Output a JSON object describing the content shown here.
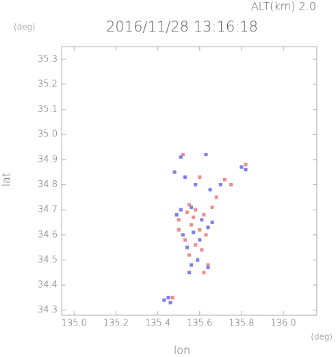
{
  "chart_data": {
    "type": "scatter",
    "title": "2016/11/28 13:16:18",
    "subtitle": "ALT(km) 2.0",
    "y_unit": "(deg)",
    "x_unit": "(deg)",
    "x_label": "lon",
    "y_label": "lat",
    "xlim": [
      134.94,
      136.16
    ],
    "ylim": [
      34.28,
      35.35
    ],
    "xticks": [
      {
        "value": 135,
        "label": "135.0"
      },
      135.2,
      135.4,
      135.6,
      135.8,
      {
        "value": 136,
        "label": "136.0"
      }
    ],
    "yticks": [
      34.3,
      34.4,
      34.5,
      34.6,
      34.7,
      34.8,
      34.9,
      {
        "value": 35,
        "label": "35.0"
      },
      35.1,
      35.2,
      35.3
    ],
    "series": [
      {
        "color": "#f08a8a",
        "x": [
          135.52,
          135.6,
          135.72,
          135.75,
          135.55,
          135.58,
          135.62,
          135.5,
          135.56,
          135.6,
          135.63,
          135.53,
          135.58,
          135.61,
          135.55,
          135.64,
          135.5,
          135.66,
          135.82,
          135.47,
          135.57,
          135.54,
          135.68,
          135.62
        ],
        "y": [
          34.92,
          34.83,
          34.82,
          34.8,
          34.72,
          34.7,
          34.68,
          34.66,
          34.64,
          34.62,
          34.6,
          34.58,
          34.56,
          34.54,
          34.52,
          34.48,
          34.62,
          34.71,
          34.88,
          34.35,
          34.67,
          34.69,
          34.75,
          34.45
        ]
      },
      {
        "color": "#7b7bef",
        "x": [
          135.51,
          135.63,
          135.48,
          135.53,
          135.58,
          135.65,
          135.8,
          135.82,
          135.51,
          135.56,
          135.61,
          135.64,
          135.52,
          135.57,
          135.6,
          135.54,
          135.59,
          135.56,
          135.64,
          135.43,
          135.45,
          135.46,
          135.66,
          135.49,
          135.55,
          135.7
        ],
        "y": [
          34.91,
          34.92,
          34.85,
          34.83,
          34.8,
          34.78,
          34.87,
          34.86,
          34.7,
          34.71,
          34.66,
          34.63,
          34.6,
          34.61,
          34.58,
          34.55,
          34.5,
          34.48,
          34.47,
          34.34,
          34.35,
          34.33,
          34.65,
          34.68,
          34.45,
          34.8
        ]
      }
    ]
  }
}
